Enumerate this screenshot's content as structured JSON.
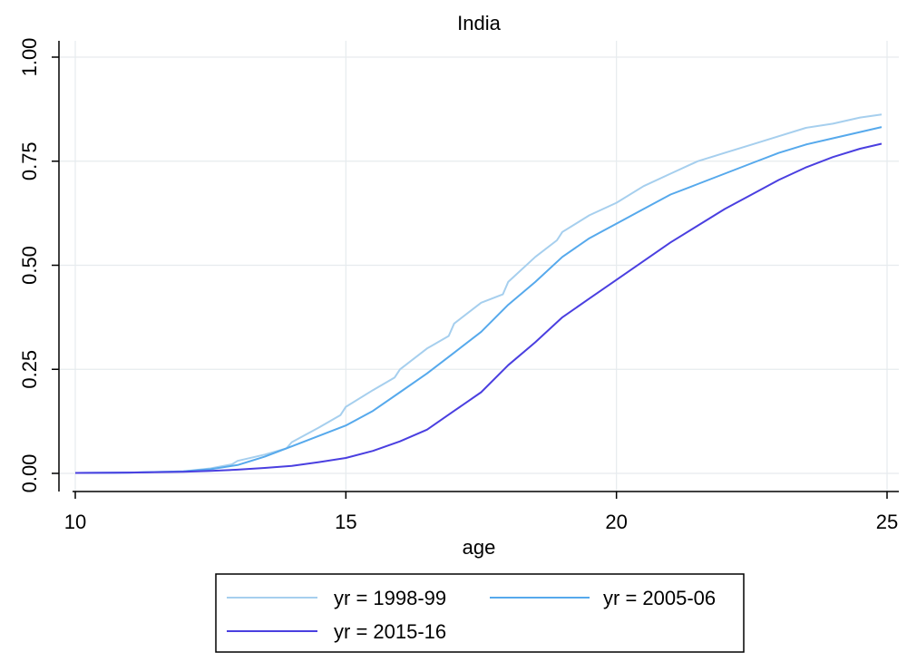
{
  "chart_data": {
    "type": "line",
    "title": "India",
    "xlabel": "age",
    "ylabel": "",
    "xlim": [
      10,
      25
    ],
    "ylim": [
      0,
      1
    ],
    "x_ticks": [
      10,
      15,
      20,
      25
    ],
    "x_tick_labels": [
      "10",
      "15",
      "20",
      "25"
    ],
    "y_ticks": [
      0,
      0.25,
      0.5,
      0.75,
      1
    ],
    "y_tick_labels": [
      "0.00",
      "0.25",
      "0.50",
      "0.75",
      "1.00"
    ],
    "grid": true,
    "legend_position": "bottom",
    "series": [
      {
        "name": "yr = 1998-99",
        "color": "#a6cfee",
        "x": [
          10,
          11,
          12,
          12.5,
          12.9,
          13,
          13.5,
          13.9,
          14,
          14.5,
          14.9,
          15,
          15.5,
          15.9,
          16,
          16.5,
          16.9,
          17,
          17.5,
          17.9,
          18,
          18.5,
          18.9,
          19,
          19.5,
          20,
          20.5,
          21,
          21.5,
          22,
          22.5,
          23,
          23.5,
          24,
          24.5,
          24.9
        ],
        "values": [
          0.001,
          0.002,
          0.005,
          0.012,
          0.022,
          0.03,
          0.045,
          0.06,
          0.075,
          0.11,
          0.14,
          0.16,
          0.2,
          0.23,
          0.25,
          0.3,
          0.33,
          0.36,
          0.41,
          0.43,
          0.46,
          0.52,
          0.56,
          0.58,
          0.62,
          0.65,
          0.69,
          0.72,
          0.75,
          0.77,
          0.79,
          0.81,
          0.83,
          0.84,
          0.855,
          0.862
        ]
      },
      {
        "name": "yr = 2005-06",
        "color": "#56a9ec",
        "x": [
          10,
          11,
          12,
          12.5,
          13,
          13.5,
          14,
          14.5,
          15,
          15.5,
          16,
          16.5,
          17,
          17.5,
          18,
          18.5,
          19,
          19.5,
          20,
          20.5,
          21,
          21.5,
          22,
          22.5,
          23,
          23.5,
          24,
          24.5,
          24.9
        ],
        "values": [
          0.001,
          0.002,
          0.005,
          0.01,
          0.02,
          0.04,
          0.065,
          0.09,
          0.115,
          0.15,
          0.195,
          0.24,
          0.29,
          0.34,
          0.405,
          0.46,
          0.52,
          0.565,
          0.6,
          0.635,
          0.67,
          0.695,
          0.72,
          0.745,
          0.77,
          0.79,
          0.805,
          0.82,
          0.832
        ]
      },
      {
        "name": "yr = 2015-16",
        "color": "#4a3fe0",
        "x": [
          10,
          11,
          12,
          12.5,
          13,
          13.5,
          14,
          14.5,
          15,
          15.5,
          16,
          16.5,
          17,
          17.5,
          18,
          18.5,
          19,
          19.5,
          20,
          20.5,
          21,
          21.5,
          22,
          22.5,
          23,
          23.5,
          24,
          24.5,
          24.9
        ],
        "values": [
          0.001,
          0.002,
          0.004,
          0.006,
          0.009,
          0.013,
          0.018,
          0.027,
          0.037,
          0.054,
          0.077,
          0.105,
          0.15,
          0.195,
          0.26,
          0.315,
          0.375,
          0.42,
          0.465,
          0.51,
          0.555,
          0.595,
          0.635,
          0.67,
          0.705,
          0.735,
          0.76,
          0.78,
          0.792
        ]
      }
    ]
  }
}
